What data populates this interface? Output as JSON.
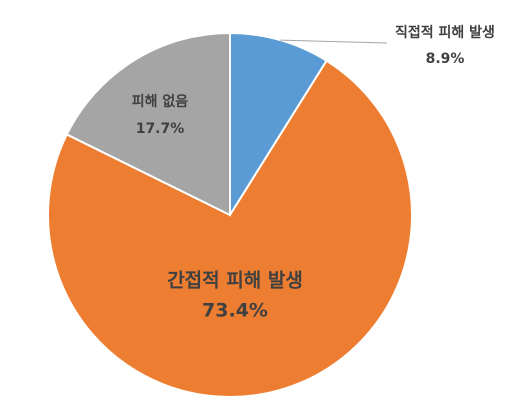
{
  "chart_data": {
    "type": "pie",
    "categories": [
      "직접적 피해 발생",
      "간접적 피해 발생",
      "피해 없음"
    ],
    "values": [
      8.9,
      73.4,
      17.7
    ],
    "value_labels": [
      "8.9%",
      "73.4%",
      "17.7%"
    ],
    "colors": [
      "#5b9bd5",
      "#ed7d31",
      "#a5a5a5"
    ],
    "start_angle": 0,
    "direction": "clockwise"
  }
}
